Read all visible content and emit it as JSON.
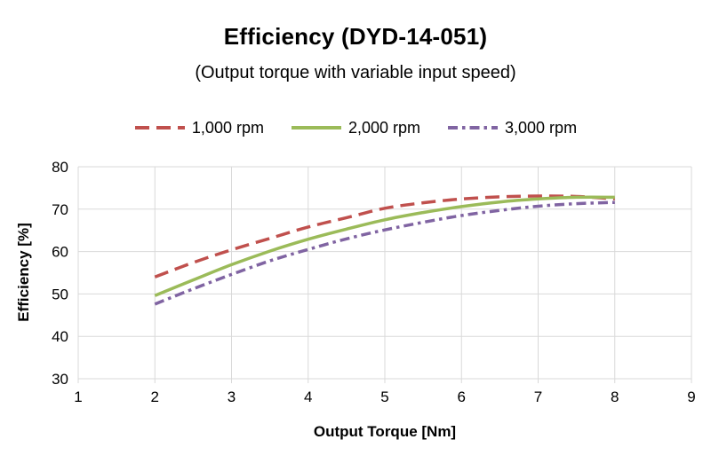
{
  "title": "Efficiency (DYD-14-051)",
  "subtitle": "(Output torque with variable input speed)",
  "chart_data": {
    "type": "line",
    "title": "Efficiency (DYD-14-051)",
    "subtitle": "(Output torque with variable input speed)",
    "xlabel": "Output Torque [Nm]",
    "ylabel": "Efficiency [%]",
    "xlim": [
      1,
      9
    ],
    "ylim": [
      30,
      80
    ],
    "x_ticks": [
      1,
      2,
      3,
      4,
      5,
      6,
      7,
      8,
      9
    ],
    "y_ticks": [
      30,
      40,
      50,
      60,
      70,
      80
    ],
    "grid": true,
    "grid_color": "#D9D9D9",
    "tick_label_color": "#000000",
    "legend_position": "top",
    "x": [
      2,
      2.5,
      3,
      3.5,
      4,
      4.5,
      5,
      5.5,
      6,
      6.5,
      7,
      7.5,
      8
    ],
    "series": [
      {
        "name": "1,000 rpm",
        "color": "#C0504D",
        "dash": "dashed",
        "values": [
          54.0,
          57.4,
          60.4,
          63.1,
          65.8,
          68.0,
          70.2,
          71.5,
          72.4,
          72.9,
          73.1,
          73.0,
          72.4
        ]
      },
      {
        "name": "2,000 rpm",
        "color": "#9BBB59",
        "dash": "solid",
        "values": [
          49.6,
          53.3,
          56.9,
          60.1,
          62.9,
          65.3,
          67.5,
          69.2,
          70.6,
          71.7,
          72.4,
          72.8,
          72.8
        ]
      },
      {
        "name": "3,000 rpm",
        "color": "#8064A2",
        "dash": "dashdot",
        "values": [
          47.6,
          51.2,
          54.6,
          57.8,
          60.5,
          63.0,
          65.1,
          66.9,
          68.5,
          69.7,
          70.7,
          71.3,
          71.6
        ]
      }
    ]
  }
}
